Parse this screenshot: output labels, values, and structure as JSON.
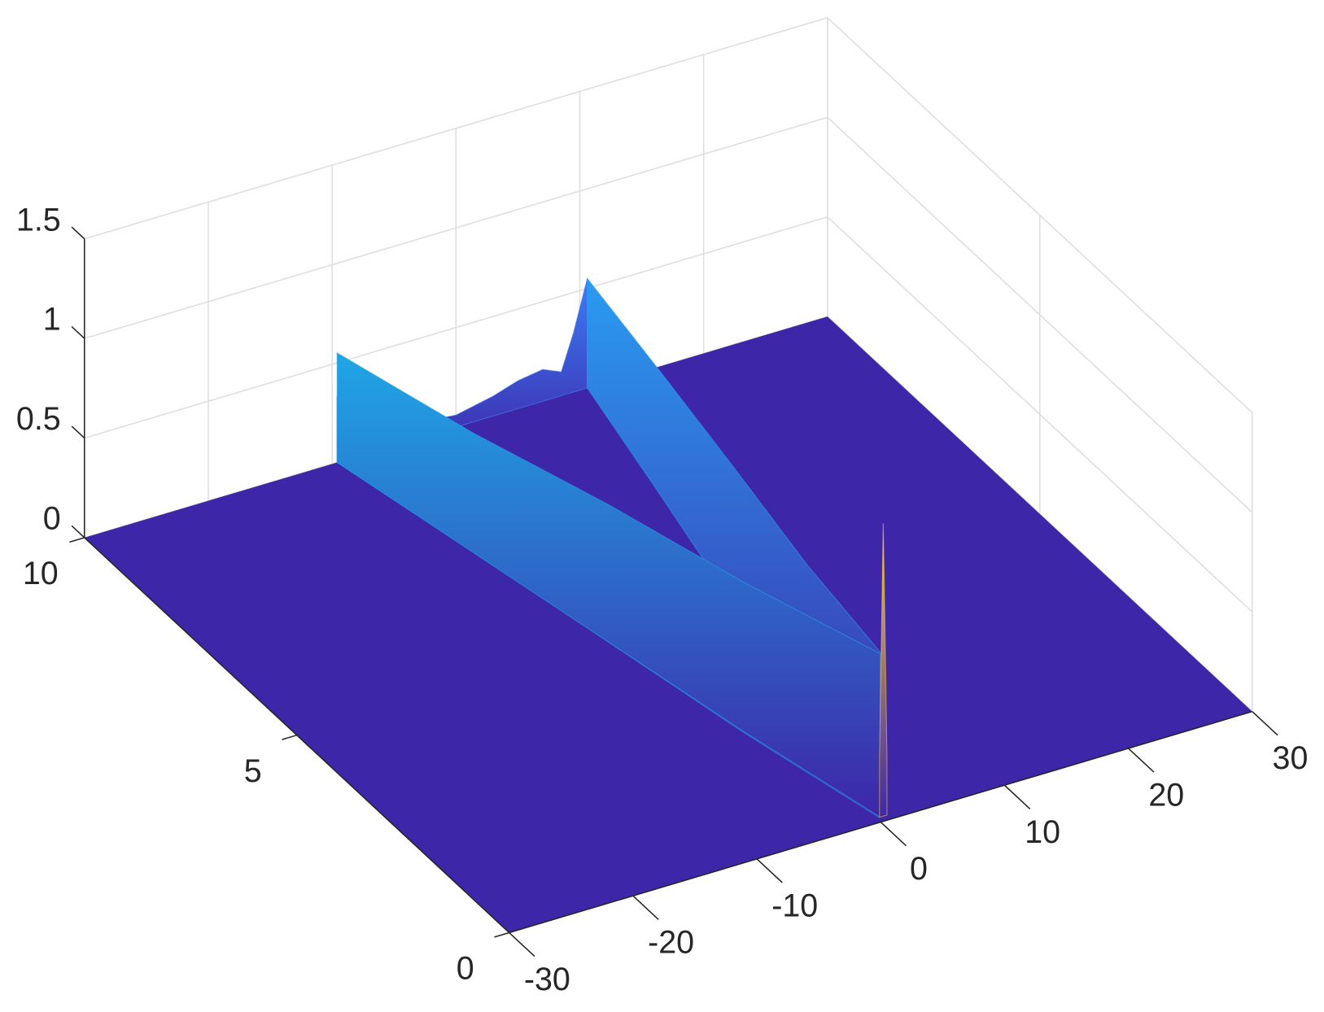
{
  "chart_data": {
    "type": "surface3d",
    "xlim": [
      -30,
      30
    ],
    "ylim": [
      0,
      10
    ],
    "zlim": [
      0,
      1.5
    ],
    "xticks": [
      -30,
      -20,
      -10,
      0,
      10,
      20,
      30
    ],
    "yticks": [
      0,
      5,
      10
    ],
    "zticks": [
      0,
      0.5,
      1,
      1.5
    ],
    "grid": true,
    "surface_color": "#3e26a8",
    "ridges": [
      {
        "color": "#2b8af0",
        "x": [
          -9.6,
          -7,
          -4.8,
          -2.5,
          0.2
        ],
        "y": [
          10,
          7.5,
          5,
          2.5,
          0.1
        ],
        "z": [
          0.33,
          0.42,
          0.5,
          0.62,
          0.78
        ]
      },
      {
        "color": "#3b7cf5",
        "x": [
          -9.6,
          -9.4,
          -7,
          -6,
          -3,
          0,
          3,
          5,
          7,
          8.5,
          9.5,
          10.6
        ],
        "y": [
          10,
          10,
          10,
          10,
          10,
          10,
          10,
          10,
          10,
          10,
          10,
          10
        ],
        "z": [
          0.33,
          0.12,
          0.08,
          0.1,
          0.08,
          0.06,
          0.1,
          0.14,
          0.16,
          0.12,
          0.3,
          0.55
        ]
      },
      {
        "color": "#2a9bf0",
        "x": [
          10.6,
          8,
          5.3,
          2.6,
          0.6
        ],
        "y": [
          10,
          7.5,
          5,
          2.5,
          0.1
        ],
        "z": [
          0.55,
          0.62,
          0.69,
          0.75,
          0.8
        ]
      },
      {
        "color": "#1fa6e6",
        "x": [
          -9.6,
          -7.2,
          -4.8,
          -2.4,
          0.3
        ],
        "y": [
          10,
          7.5,
          5,
          2.5,
          0.1
        ],
        "z": [
          0.55,
          0.6,
          0.69,
          0.75,
          0.82
        ]
      },
      {
        "color": "#f4c63e",
        "x": [
          0.25,
          0.45,
          0.55,
          0.65,
          0.85
        ],
        "y": [
          0.1,
          0.1,
          0.1,
          0.1,
          0.1
        ],
        "z": [
          0.3,
          1.1,
          1.47,
          1.1,
          0.3
        ]
      }
    ]
  }
}
